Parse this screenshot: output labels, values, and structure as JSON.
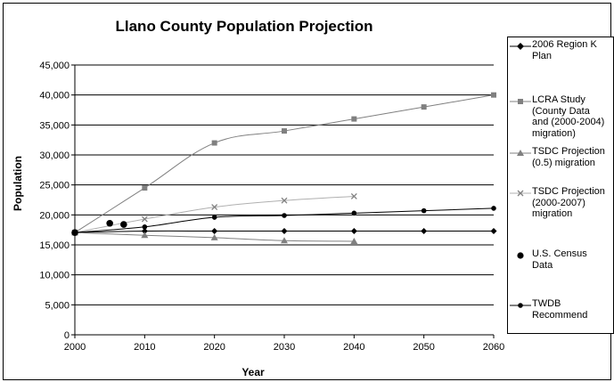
{
  "chart_data": {
    "type": "line",
    "title": "Llano County Population Projection",
    "xlabel": "Year",
    "ylabel": "Population",
    "xlim": [
      2000,
      2060
    ],
    "ylim": [
      0,
      45000
    ],
    "x_ticks": [
      "2000",
      "2010",
      "2020",
      "2030",
      "2040",
      "2050",
      "2060"
    ],
    "y_ticks": [
      "0",
      "5,000",
      "10,000",
      "15,000",
      "20,000",
      "25,000",
      "30,000",
      "35,000",
      "40,000",
      "45,000"
    ],
    "grid": "horizontal",
    "legend_position": "right",
    "series": [
      {
        "name": "2006 Region K\nPlan",
        "marker": "diamond",
        "color": "#000000",
        "x": [
          2000,
          2010,
          2020,
          2030,
          2040,
          2050,
          2060
        ],
        "y": [
          17050,
          17300,
          17300,
          17300,
          17300,
          17300,
          17300
        ]
      },
      {
        "name": "LCRA Study\n(County Data\nand (2000-2004)\nmigration)",
        "marker": "square",
        "color": "#808080",
        "x": [
          2000,
          2010,
          2020,
          2030,
          2040,
          2050,
          2060
        ],
        "y": [
          17050,
          24500,
          32000,
          34000,
          36000,
          38000,
          40000
        ]
      },
      {
        "name": "TSDC Projection\n(0.5) migration",
        "marker": "triangle",
        "color": "#808080",
        "x": [
          2000,
          2010,
          2020,
          2030,
          2040
        ],
        "y": [
          17050,
          16600,
          16200,
          15700,
          15600
        ]
      },
      {
        "name": "TSDC Projection\n(2000-2007)\nmigration",
        "marker": "x",
        "color": "#b0b0b0",
        "x": [
          2000,
          2010,
          2020,
          2030,
          2040
        ],
        "y": [
          17050,
          19300,
          21300,
          22400,
          23100
        ]
      },
      {
        "name": "U.S. Census\nData",
        "marker": "circle",
        "line": false,
        "color": "#000000",
        "x": [
          2000,
          2005,
          2007
        ],
        "y": [
          17050,
          18600,
          18400
        ]
      },
      {
        "name": "TWDB\nRecommend",
        "marker": "dot",
        "color": "#000000",
        "x": [
          2000,
          2010,
          2020,
          2030,
          2040,
          2050,
          2060
        ],
        "y": [
          17050,
          18000,
          19600,
          19900,
          20300,
          20700,
          21100
        ]
      }
    ]
  }
}
